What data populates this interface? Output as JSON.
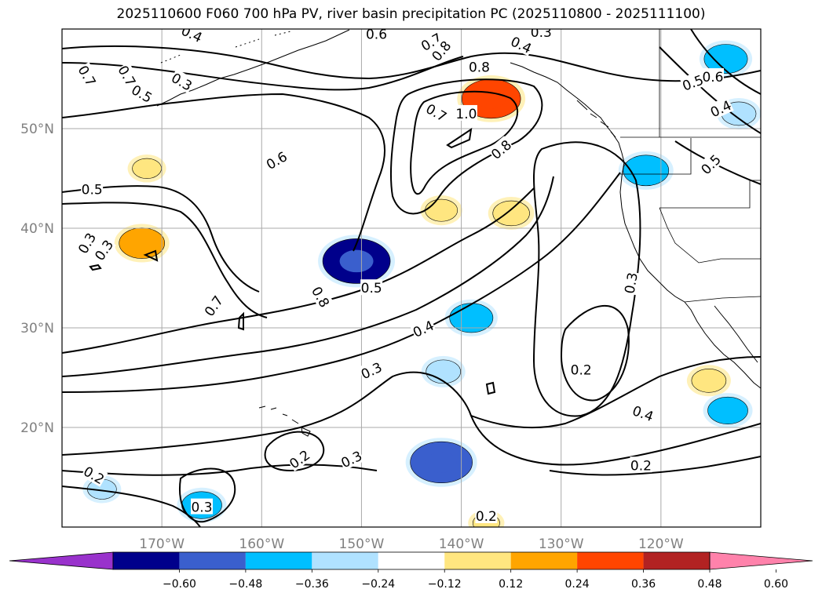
{
  "chart_data": {
    "type": "map-contour",
    "title": "2025110600 F060 700 hPa PV, river basin precipitation PC (2025110800 - 2025111100)",
    "map": {
      "lon_range": [
        -180,
        -110
      ],
      "lat_range": [
        10,
        60
      ],
      "lon_ticks": [
        -170,
        -160,
        -150,
        -140,
        -130,
        -120
      ],
      "lon_tick_labels": [
        "170°W",
        "160°W",
        "150°W",
        "140°W",
        "130°W",
        "120°W"
      ],
      "lat_ticks": [
        20,
        30,
        40,
        50
      ],
      "lat_tick_labels": [
        "20°N",
        "30°N",
        "40°N",
        "50°N"
      ],
      "grid": true
    },
    "contour_levels": [
      0.2,
      0.3,
      0.4,
      0.5,
      0.6,
      0.7,
      0.8,
      1.0
    ],
    "contour_labels": [
      {
        "text": "0.4",
        "lon": -167.0,
        "lat": 59.5,
        "rot": 25
      },
      {
        "text": "0.6",
        "lon": -148.5,
        "lat": 59.5,
        "rot": 0
      },
      {
        "text": "0.7",
        "lon": -143.0,
        "lat": 58.7,
        "rot": -30
      },
      {
        "text": "0.8",
        "lon": -142.0,
        "lat": 57.8,
        "rot": -50
      },
      {
        "text": "0.3",
        "lon": -132.0,
        "lat": 59.7,
        "rot": 0
      },
      {
        "text": "0.4",
        "lon": -134.0,
        "lat": 58.4,
        "rot": 25
      },
      {
        "text": "0.3",
        "lon": -168.0,
        "lat": 54.7,
        "rot": 30
      },
      {
        "text": "0.5",
        "lon": -172.0,
        "lat": 53.5,
        "rot": 30
      },
      {
        "text": "0.7",
        "lon": -177.5,
        "lat": 55.3,
        "rot": 60
      },
      {
        "text": "0.8",
        "lon": -138.2,
        "lat": 56.2,
        "rot": 0
      },
      {
        "text": "0.7",
        "lon": -142.5,
        "lat": 51.6,
        "rot": 30
      },
      {
        "text": "1.0",
        "lon": -139.5,
        "lat": 51.5,
        "rot": 0
      },
      {
        "text": "0.8",
        "lon": -136.0,
        "lat": 47.9,
        "rot": -40
      },
      {
        "text": "0.6",
        "lon": -158.5,
        "lat": 46.8,
        "rot": -30
      },
      {
        "text": "0.5",
        "lon": -177.0,
        "lat": 43.9,
        "rot": 0
      },
      {
        "text": "0.3",
        "lon": -175.8,
        "lat": 37.8,
        "rot": -55
      },
      {
        "text": "0.7",
        "lon": -173.5,
        "lat": 55.3,
        "rot": 60
      },
      {
        "text": "0.7",
        "lon": -164.8,
        "lat": 32.2,
        "rot": -55
      },
      {
        "text": "0.8",
        "lon": -154.1,
        "lat": 33.1,
        "rot": 60
      },
      {
        "text": "0.5",
        "lon": -149.0,
        "lat": 34.0,
        "rot": 0
      },
      {
        "text": "0.4",
        "lon": -143.8,
        "lat": 29.9,
        "rot": -25
      },
      {
        "text": "0.3",
        "lon": -149.0,
        "lat": 25.7,
        "rot": -25
      },
      {
        "text": "0.2",
        "lon": -128.0,
        "lat": 25.8,
        "rot": 0
      },
      {
        "text": "0.4",
        "lon": -121.8,
        "lat": 21.4,
        "rot": 20
      },
      {
        "text": "0.2",
        "lon": -122.0,
        "lat": 16.2,
        "rot": 0
      },
      {
        "text": "0.2",
        "lon": -156.2,
        "lat": 16.8,
        "rot": -35
      },
      {
        "text": "0.3",
        "lon": -151.0,
        "lat": 16.8,
        "rot": -25
      },
      {
        "text": "0.2",
        "lon": -176.8,
        "lat": 15.2,
        "rot": 30
      },
      {
        "text": "0.3",
        "lon": -166.0,
        "lat": 12.0,
        "rot": 0
      },
      {
        "text": "0.2",
        "lon": -137.5,
        "lat": 11.1,
        "rot": 0
      },
      {
        "text": "0.6",
        "lon": -114.8,
        "lat": 55.2,
        "rot": 0
      },
      {
        "text": "0.5",
        "lon": -116.8,
        "lat": 54.6,
        "rot": -20
      },
      {
        "text": "0.4",
        "lon": -114.0,
        "lat": 52.0,
        "rot": -25
      },
      {
        "text": "0.5",
        "lon": -115.0,
        "lat": 46.4,
        "rot": -45
      },
      {
        "text": "0.3",
        "lon": -123.0,
        "lat": 34.5,
        "rot": -80
      },
      {
        "text": "0.3",
        "lon": -177.5,
        "lat": 38.5,
        "rot": -60
      }
    ],
    "precip_anomalies": [
      {
        "sign": "positive",
        "value": 0.42,
        "lon": -137.0,
        "lat": 53.0
      },
      {
        "sign": "positive",
        "value": 0.3,
        "lon": -172.0,
        "lat": 38.5
      },
      {
        "sign": "positive",
        "value": 0.18,
        "lon": -142.0,
        "lat": 41.8
      },
      {
        "sign": "positive",
        "value": 0.22,
        "lon": -135.0,
        "lat": 41.5
      },
      {
        "sign": "positive",
        "value": 0.15,
        "lon": -171.5,
        "lat": 46.0
      },
      {
        "sign": "positive",
        "value": 0.2,
        "lon": -115.2,
        "lat": 24.7
      },
      {
        "sign": "positive",
        "value": 0.13,
        "lon": -137.5,
        "lat": 10.4
      },
      {
        "sign": "negative",
        "value": -0.5,
        "lon": -150.5,
        "lat": 36.7
      },
      {
        "sign": "negative",
        "value": -0.45,
        "lon": -142.0,
        "lat": 16.5
      },
      {
        "sign": "negative",
        "value": -0.3,
        "lon": -121.5,
        "lat": 45.8
      },
      {
        "sign": "negative",
        "value": -0.28,
        "lon": -139.0,
        "lat": 31.0
      },
      {
        "sign": "negative",
        "value": -0.2,
        "lon": -141.8,
        "lat": 25.6
      },
      {
        "sign": "negative",
        "value": -0.25,
        "lon": -113.3,
        "lat": 21.7
      },
      {
        "sign": "negative",
        "value": -0.28,
        "lon": -113.5,
        "lat": 57.0
      },
      {
        "sign": "negative",
        "value": -0.2,
        "lon": -112.2,
        "lat": 51.5
      },
      {
        "sign": "negative",
        "value": -0.25,
        "lon": -166.0,
        "lat": 12.2
      },
      {
        "sign": "negative",
        "value": -0.15,
        "lon": -176.0,
        "lat": 13.8
      }
    ],
    "colorbar": {
      "ticks": [
        "−0.60",
        "−0.48",
        "−0.36",
        "−0.24",
        "−0.12",
        "0.12",
        "0.24",
        "0.36",
        "0.48",
        "0.60"
      ],
      "colors": [
        "#9932cc",
        "#00008b",
        "#3a5fcd",
        "#00bfff",
        "#b0e2ff",
        "#ffffff",
        "#ffe680",
        "#ffa500",
        "#ff4500",
        "#b22222",
        "#ff82ab"
      ],
      "extend": "both"
    }
  }
}
